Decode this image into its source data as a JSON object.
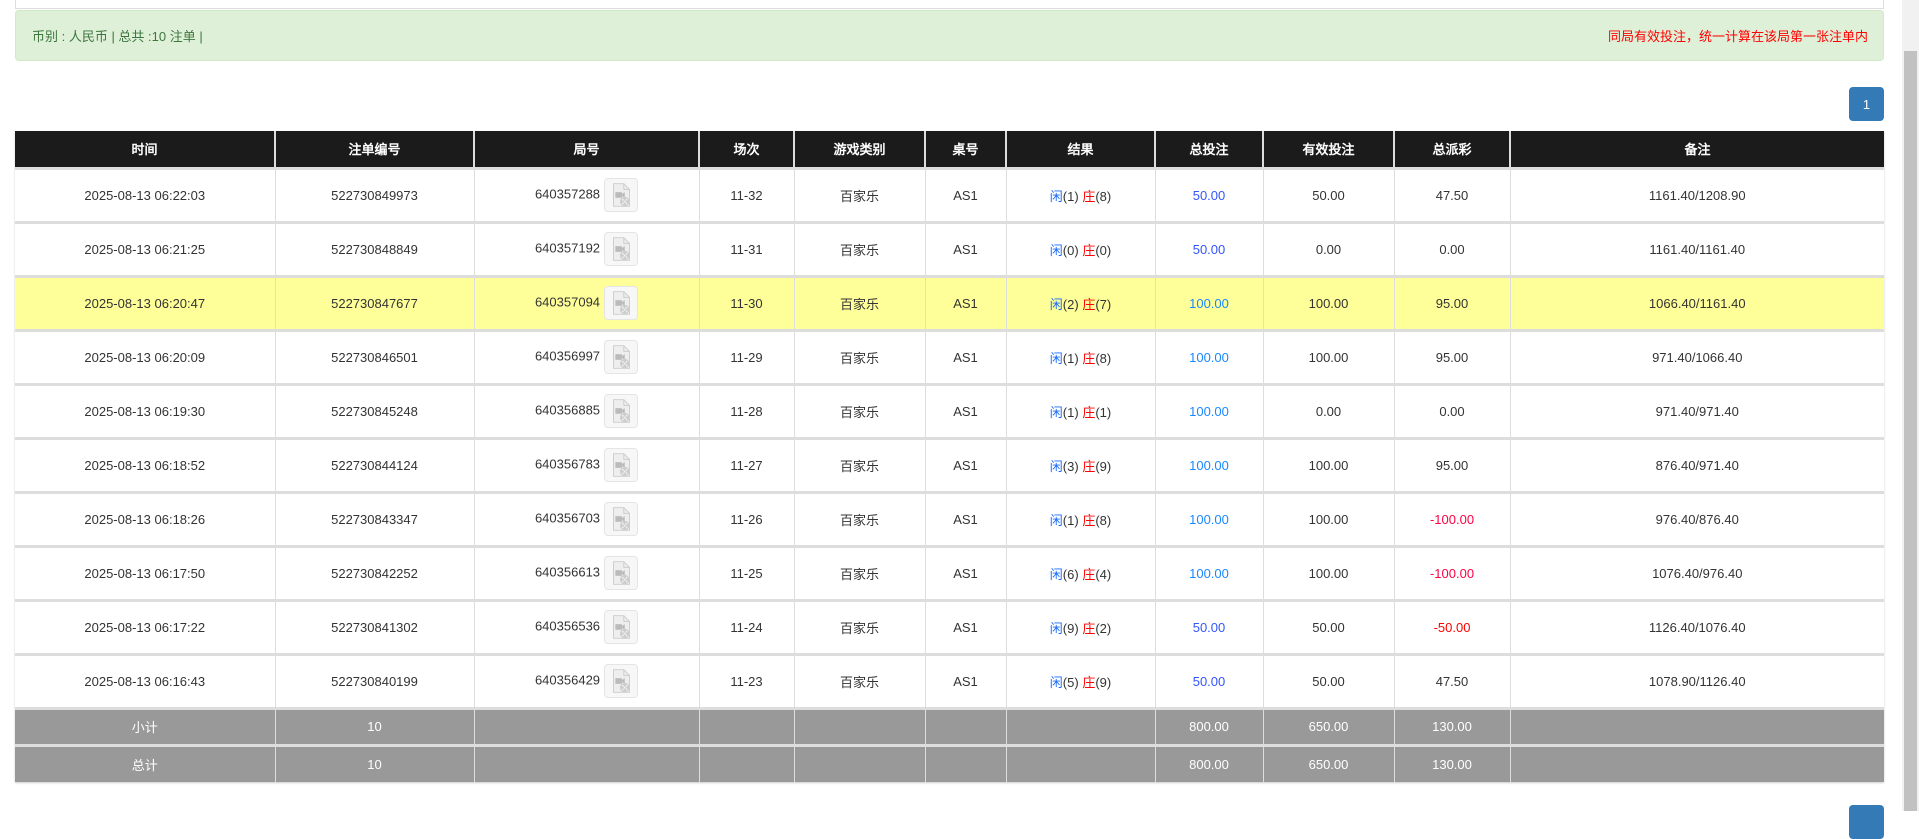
{
  "summary": {
    "left": "币别 : 人民币 | 总共 :10 注单 |",
    "right": "同局有效投注，统一计算在该局第一张注单内"
  },
  "pagination": {
    "current": "1"
  },
  "table": {
    "headers": [
      "时间",
      "注单编号",
      "局号",
      "场次",
      "游戏类别",
      "桌号",
      "结果",
      "总投注",
      "有效投注",
      "总派彩",
      "备注"
    ],
    "rows": [
      {
        "time": "2025-08-13 06:22:03",
        "bet_no": "522730849973",
        "round": "640357288",
        "shoe": "11-32",
        "game": "百家乐",
        "table": "AS1",
        "player": "闲",
        "pv": "(1)",
        "banker": "庄",
        "bv": "(8)",
        "total": "50.00",
        "valid": "50.00",
        "payout": "47.50",
        "note": "1161.40/1208.90"
      },
      {
        "time": "2025-08-13 06:21:25",
        "bet_no": "522730848849",
        "round": "640357192",
        "shoe": "11-31",
        "game": "百家乐",
        "table": "AS1",
        "player": "闲",
        "pv": "(0)",
        "banker": "庄",
        "bv": "(0)",
        "total": "50.00",
        "valid": "0.00",
        "payout": "0.00",
        "note": "1161.40/1161.40"
      },
      {
        "time": "2025-08-13 06:20:47",
        "bet_no": "522730847677",
        "round": "640357094",
        "shoe": "11-30",
        "game": "百家乐",
        "table": "AS1",
        "player": "闲",
        "pv": "(2)",
        "banker": "庄",
        "bv": "(7)",
        "total": "100.00",
        "valid": "100.00",
        "payout": "95.00",
        "note": "1066.40/1161.40",
        "highlighted": true
      },
      {
        "time": "2025-08-13 06:20:09",
        "bet_no": "522730846501",
        "round": "640356997",
        "shoe": "11-29",
        "game": "百家乐",
        "table": "AS1",
        "player": "闲",
        "pv": "(1)",
        "banker": "庄",
        "bv": "(8)",
        "total": "100.00",
        "valid": "100.00",
        "payout": "95.00",
        "note": "971.40/1066.40"
      },
      {
        "time": "2025-08-13 06:19:30",
        "bet_no": "522730845248",
        "round": "640356885",
        "shoe": "11-28",
        "game": "百家乐",
        "table": "AS1",
        "player": "闲",
        "pv": "(1)",
        "banker": "庄",
        "bv": "(1)",
        "total": "100.00",
        "valid": "0.00",
        "payout": "0.00",
        "note": "971.40/971.40"
      },
      {
        "time": "2025-08-13 06:18:52",
        "bet_no": "522730844124",
        "round": "640356783",
        "shoe": "11-27",
        "game": "百家乐",
        "table": "AS1",
        "player": "闲",
        "pv": "(3)",
        "banker": "庄",
        "bv": "(9)",
        "total": "100.00",
        "valid": "100.00",
        "payout": "95.00",
        "note": "876.40/971.40"
      },
      {
        "time": "2025-08-13 06:18:26",
        "bet_no": "522730843347",
        "round": "640356703",
        "shoe": "11-26",
        "game": "百家乐",
        "table": "AS1",
        "player": "闲",
        "pv": "(1)",
        "banker": "庄",
        "bv": "(8)",
        "total": "100.00",
        "valid": "100.00",
        "payout": "-100.00",
        "note": "976.40/876.40"
      },
      {
        "time": "2025-08-13 06:17:50",
        "bet_no": "522730842252",
        "round": "640356613",
        "shoe": "11-25",
        "game": "百家乐",
        "table": "AS1",
        "player": "闲",
        "pv": "(6)",
        "banker": "庄",
        "bv": "(4)",
        "total": "100.00",
        "valid": "100.00",
        "payout": "-100.00",
        "note": "1076.40/976.40"
      },
      {
        "time": "2025-08-13 06:17:22",
        "bet_no": "522730841302",
        "round": "640356536",
        "shoe": "11-24",
        "game": "百家乐",
        "table": "AS1",
        "player": "闲",
        "pv": "(9)",
        "banker": "庄",
        "bv": "(2)",
        "total": "50.00",
        "valid": "50.00",
        "payout": "-50.00",
        "note": "1126.40/1076.40"
      },
      {
        "time": "2025-08-13 06:16:43",
        "bet_no": "522730840199",
        "round": "640356429",
        "shoe": "11-23",
        "game": "百家乐",
        "table": "AS1",
        "player": "闲",
        "pv": "(5)",
        "banker": "庄",
        "bv": "(9)",
        "total": "50.00",
        "valid": "50.00",
        "payout": "47.50",
        "note": "1078.90/1126.40"
      }
    ],
    "subtotal": {
      "label": "小计",
      "count": "10",
      "total": "800.00",
      "valid": "650.00",
      "payout": "130.00"
    },
    "grandtotal": {
      "label": "总计",
      "count": "10",
      "total": "800.00",
      "valid": "650.00",
      "payout": "130.00"
    }
  },
  "icons": {
    "round_detail": "video-file-icon"
  },
  "colors": {
    "header_bg": "#1b1b1b",
    "highlight_row": "#ffff99",
    "summary_bg": "#999999",
    "alert_bg": "#dff0d8",
    "pagination": "#337ab7"
  }
}
